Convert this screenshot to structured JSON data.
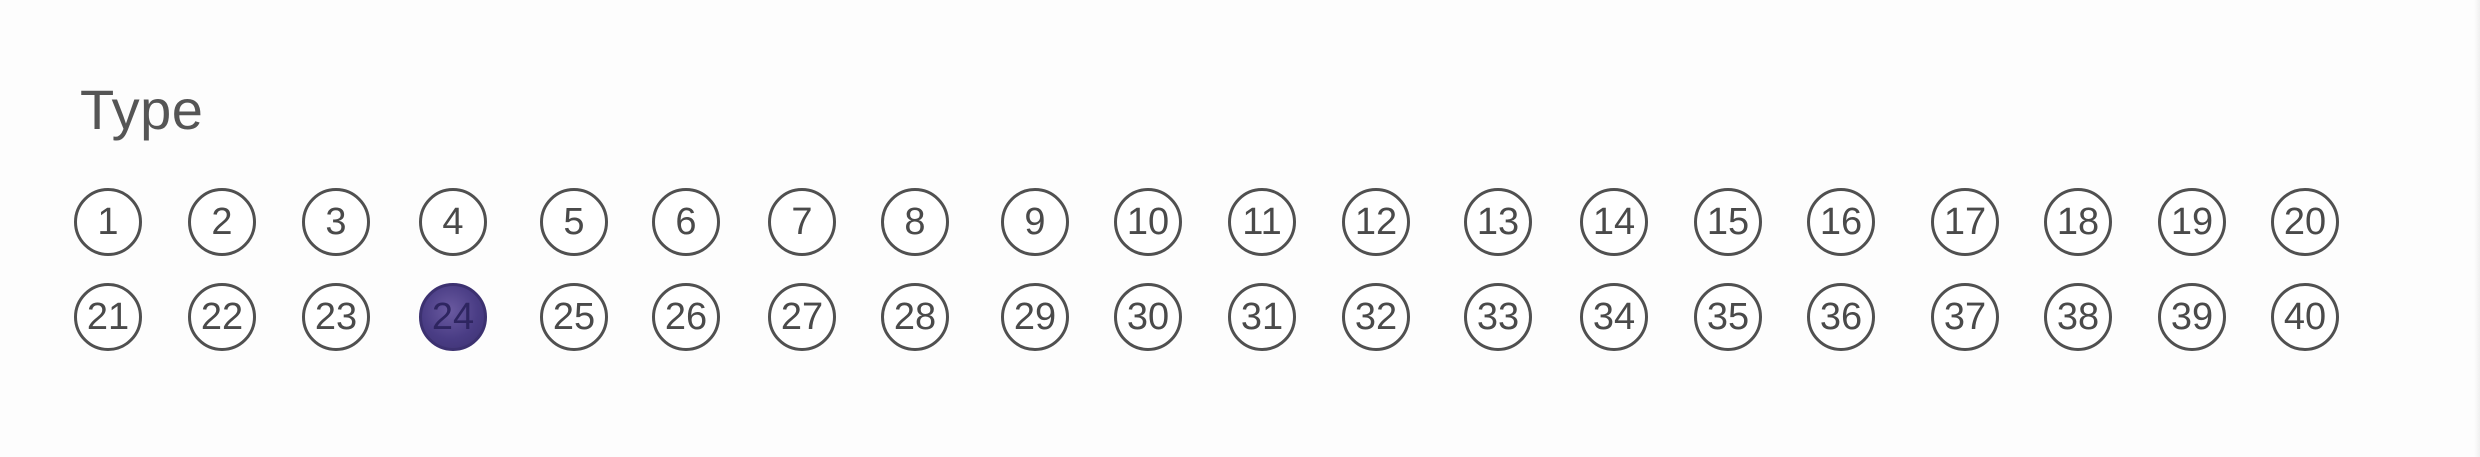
{
  "section": {
    "title": "Type"
  },
  "colors": {
    "background": "#fdfdfd",
    "bubble_border": "#505050",
    "filled_bubble": "#4a3d85"
  },
  "bubbles": [
    {
      "label": "1",
      "filled": false
    },
    {
      "label": "2",
      "filled": false
    },
    {
      "label": "3",
      "filled": false
    },
    {
      "label": "4",
      "filled": false
    },
    {
      "label": "5",
      "filled": false
    },
    {
      "label": "6",
      "filled": false
    },
    {
      "label": "7",
      "filled": false
    },
    {
      "label": "8",
      "filled": false
    },
    {
      "label": "9",
      "filled": false
    },
    {
      "label": "10",
      "filled": false
    },
    {
      "label": "11",
      "filled": false
    },
    {
      "label": "12",
      "filled": false
    },
    {
      "label": "13",
      "filled": false
    },
    {
      "label": "14",
      "filled": false
    },
    {
      "label": "15",
      "filled": false
    },
    {
      "label": "16",
      "filled": false
    },
    {
      "label": "17",
      "filled": false
    },
    {
      "label": "18",
      "filled": false
    },
    {
      "label": "19",
      "filled": false
    },
    {
      "label": "20",
      "filled": false
    },
    {
      "label": "21",
      "filled": false
    },
    {
      "label": "22",
      "filled": false
    },
    {
      "label": "23",
      "filled": false
    },
    {
      "label": "24",
      "filled": true
    },
    {
      "label": "25",
      "filled": false
    },
    {
      "label": "26",
      "filled": false
    },
    {
      "label": "27",
      "filled": false
    },
    {
      "label": "28",
      "filled": false
    },
    {
      "label": "29",
      "filled": false
    },
    {
      "label": "30",
      "filled": false
    },
    {
      "label": "31",
      "filled": false
    },
    {
      "label": "32",
      "filled": false
    },
    {
      "label": "33",
      "filled": false
    },
    {
      "label": "34",
      "filled": false
    },
    {
      "label": "35",
      "filled": false
    },
    {
      "label": "36",
      "filled": false
    },
    {
      "label": "37",
      "filled": false
    },
    {
      "label": "38",
      "filled": false
    },
    {
      "label": "39",
      "filled": false
    },
    {
      "label": "40",
      "filled": false
    }
  ]
}
